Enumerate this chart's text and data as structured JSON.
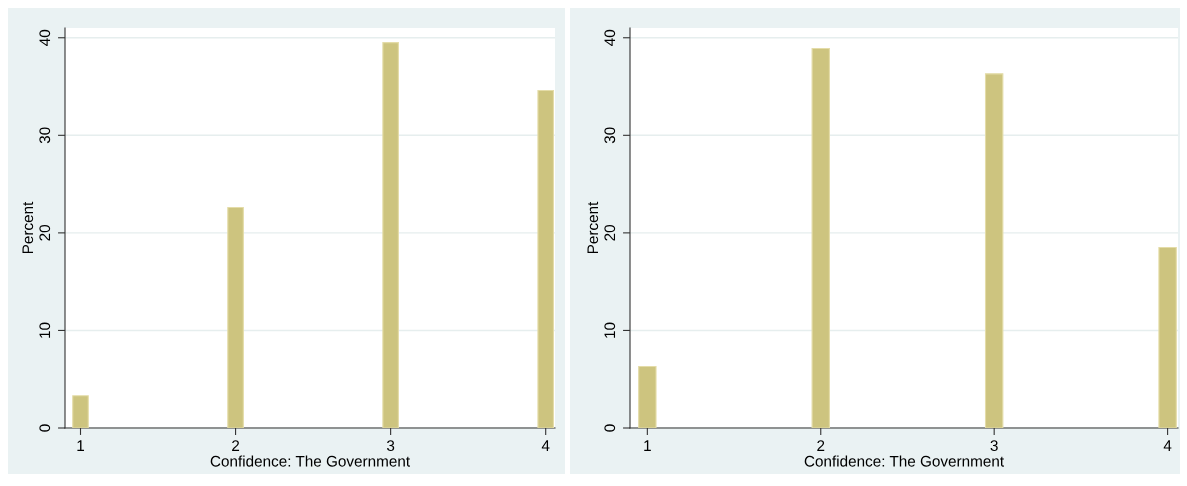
{
  "chart_data": [
    {
      "type": "bar",
      "x": [
        1,
        2,
        3,
        4
      ],
      "values": [
        3.3,
        22.6,
        39.5,
        34.6
      ],
      "color": "#cdc47f",
      "xlabel": "Confidence: The Government",
      "ylabel": "Percent",
      "xlim": [
        0.9,
        4.06
      ],
      "xticks": [
        1,
        2,
        3,
        4
      ],
      "ylim": [
        0,
        41
      ],
      "yticks": [
        0,
        10,
        20,
        30,
        40
      ],
      "grid": "y"
    },
    {
      "type": "bar",
      "x": [
        1,
        2,
        3,
        4
      ],
      "values": [
        6.3,
        38.9,
        36.3,
        18.5
      ],
      "color": "#cdc47f",
      "xlabel": "Confidence: The Government",
      "ylabel": "Percent",
      "xlim": [
        0.9,
        4.06
      ],
      "xticks": [
        1,
        2,
        3,
        4
      ],
      "ylim": [
        0,
        41
      ],
      "yticks": [
        0,
        10,
        20,
        30,
        40
      ],
      "grid": "y"
    }
  ]
}
